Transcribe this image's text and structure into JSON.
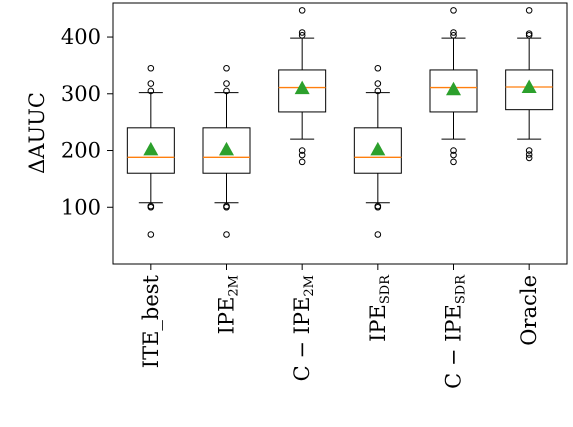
{
  "chart_data": {
    "type": "boxplot",
    "ylabel": "ΔAUUC",
    "ylim": [
      0,
      460
    ],
    "yticks": [
      100,
      200,
      300,
      400
    ],
    "categories": [
      {
        "main": "ITE_best",
        "sub": ""
      },
      {
        "main": "IPE",
        "sub": "2M"
      },
      {
        "main": "C − IPE",
        "sub": "2M"
      },
      {
        "main": "IPE",
        "sub": "SDR"
      },
      {
        "main": "C − IPE",
        "sub": "SDR"
      },
      {
        "main": "Oracle",
        "sub": ""
      }
    ],
    "boxes": [
      {
        "whislo": 108,
        "q1": 160,
        "med": 188,
        "q3": 240,
        "whishi": 302,
        "mean": 202,
        "fliers": [
          52,
          100,
          102,
          305,
          318,
          345
        ]
      },
      {
        "whislo": 108,
        "q1": 160,
        "med": 188,
        "q3": 240,
        "whishi": 302,
        "mean": 202,
        "fliers": [
          52,
          100,
          102,
          305,
          318,
          345
        ]
      },
      {
        "whislo": 220,
        "q1": 268,
        "med": 311,
        "q3": 342,
        "whishi": 398,
        "mean": 310,
        "fliers": [
          180,
          192,
          200,
          403,
          408,
          447
        ]
      },
      {
        "whislo": 108,
        "q1": 160,
        "med": 188,
        "q3": 240,
        "whishi": 302,
        "mean": 202,
        "fliers": [
          52,
          100,
          102,
          305,
          318,
          345
        ]
      },
      {
        "whislo": 220,
        "q1": 268,
        "med": 311,
        "q3": 342,
        "whishi": 398,
        "mean": 308,
        "fliers": [
          180,
          192,
          200,
          403,
          408,
          447
        ]
      },
      {
        "whislo": 220,
        "q1": 272,
        "med": 312,
        "q3": 342,
        "whishi": 398,
        "mean": 312,
        "fliers": [
          187,
          193,
          200,
          403,
          406,
          447
        ]
      }
    ],
    "colors": {
      "median": "#ff7f0e",
      "mean": "#2ca02c",
      "box": "#000000"
    }
  }
}
